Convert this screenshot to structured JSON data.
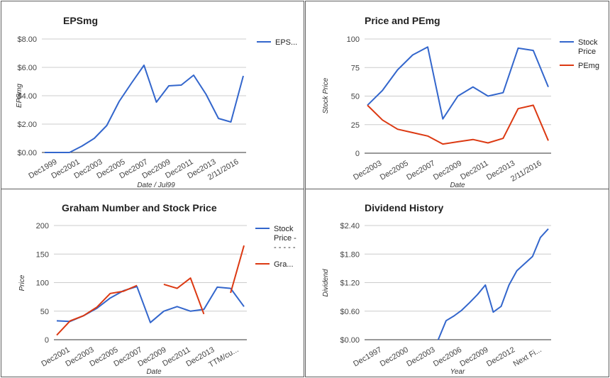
{
  "chart_data": [
    {
      "id": "eps",
      "type": "line",
      "title": "EPSmg",
      "xlabel": "Date / Jul99",
      "ylabel": "EPSmg",
      "ylim": [
        0,
        8
      ],
      "y_ticks": [
        "$0.00",
        "$2.00",
        "$4.00",
        "$6.00",
        "$8.00"
      ],
      "x_tick_labels": [
        "Dec1999",
        "Dec2001",
        "Dec2003",
        "Dec2005",
        "Dec2007",
        "Dec2009",
        "Dec2011",
        "Dec2013",
        "2/11/2016"
      ],
      "grid": true,
      "legend_position": "right",
      "series": [
        {
          "name": "EPS...",
          "color": "#3366cc",
          "values": [
            0,
            0,
            0,
            0.45,
            1.0,
            1.9,
            3.6,
            4.9,
            6.15,
            3.55,
            4.7,
            4.75,
            5.45,
            4.1,
            2.4,
            2.15,
            5.4
          ]
        }
      ]
    },
    {
      "id": "price_pe",
      "type": "line",
      "title": "Price and PEmg",
      "xlabel": "Date",
      "ylabel": "Stock Price",
      "ylim": [
        0,
        100
      ],
      "y_ticks": [
        "0",
        "25",
        "50",
        "75",
        "100"
      ],
      "x_tick_labels": [
        "Dec2003",
        "Dec2005",
        "Dec2007",
        "Dec2009",
        "Dec2011",
        "Dec2013",
        "2/11/2016"
      ],
      "grid": true,
      "legend_position": "right",
      "series": [
        {
          "name": "Stock Price",
          "color": "#3366cc",
          "values": [
            42,
            55,
            73,
            86,
            93,
            30,
            50,
            58,
            50,
            53,
            92,
            90,
            58
          ]
        },
        {
          "name": "PEmg",
          "color": "#dc3912",
          "values": [
            42,
            29,
            21,
            18,
            15,
            8,
            10,
            12,
            9,
            13,
            39,
            42,
            11
          ]
        }
      ]
    },
    {
      "id": "graham",
      "type": "line",
      "title": "Graham Number and Stock Price",
      "xlabel": "Date",
      "ylabel": "Price",
      "ylim": [
        0,
        200
      ],
      "y_ticks": [
        "0",
        "50",
        "100",
        "150",
        "200"
      ],
      "x_tick_labels": [
        "Dec2001",
        "Dec2003",
        "Dec2005",
        "Dec2007",
        "Dec2009",
        "Dec2011",
        "Dec2013",
        "TTM/cu..."
      ],
      "grid": true,
      "legend_position": "right",
      "series": [
        {
          "name": "Stock Price - - - - -",
          "legend_lines": [
            "Stock",
            "Price -",
            "- - - - -"
          ],
          "color": "#3366cc",
          "values": [
            33,
            32,
            42,
            55,
            73,
            86,
            93,
            30,
            50,
            58,
            50,
            53,
            92,
            90,
            58
          ]
        },
        {
          "name": "Gra...",
          "color": "#dc3912",
          "values": [
            8,
            33,
            42,
            57,
            81,
            85,
            95,
            null,
            97,
            90,
            108,
            45,
            null,
            82,
            165
          ]
        }
      ]
    },
    {
      "id": "dividend",
      "type": "line",
      "title": "Dividend History",
      "xlabel": "Year",
      "ylabel": "Dividend",
      "ylim": [
        0,
        2.4
      ],
      "y_ticks": [
        "$0.00",
        "$0.60",
        "$1.20",
        "$1.80",
        "$2.40"
      ],
      "x_tick_labels": [
        "Dec1997",
        "Dec2000",
        "Dec2003",
        "Dec2006",
        "Dec2009",
        "Dec2012",
        "Next Fi..."
      ],
      "grid": true,
      "legend_position": "none",
      "series": [
        {
          "name": "",
          "color": "#3366cc",
          "values": [
            null,
            null,
            null,
            null,
            null,
            null,
            null,
            null,
            null,
            0,
            0.4,
            0.5,
            0.62,
            0.78,
            0.95,
            1.15,
            0.58,
            0.7,
            1.15,
            1.45,
            1.6,
            1.75,
            2.15,
            2.33
          ]
        }
      ]
    }
  ]
}
